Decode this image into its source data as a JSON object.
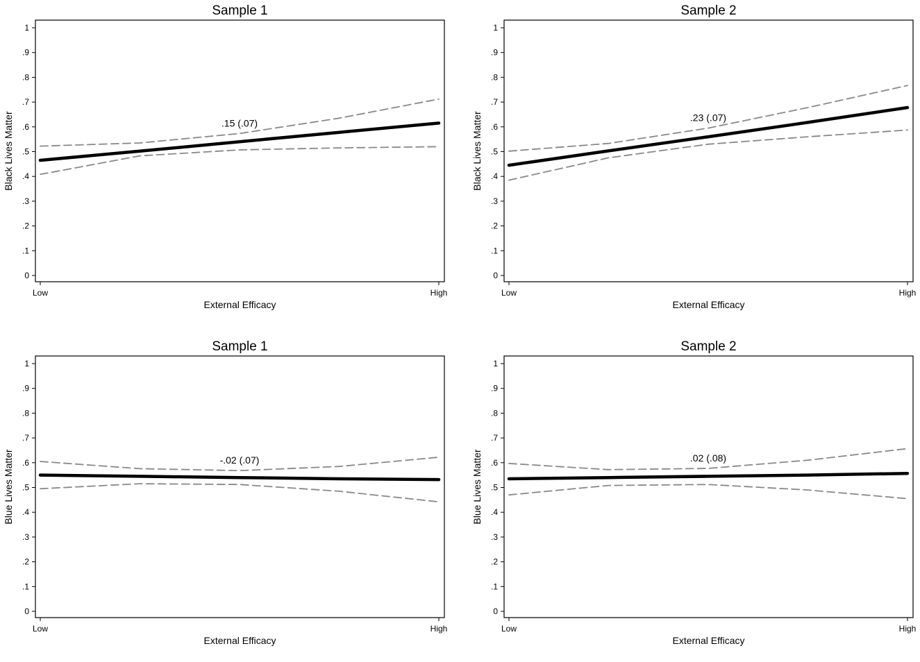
{
  "chart_data": [
    {
      "type": "line",
      "title": "Sample 1",
      "xlabel": "External Efficacy",
      "ylabel": "Black Lives Matter",
      "x": [
        0,
        0.25,
        0.5,
        0.75,
        1
      ],
      "xtick_labels": [
        "Low",
        "High"
      ],
      "ylim": [
        0,
        1
      ],
      "yticks": [
        "0",
        ".1",
        ".2",
        ".3",
        ".4",
        ".5",
        ".6",
        ".7",
        ".8",
        ".9",
        "1"
      ],
      "annotation": ".15 (.07)",
      "series": [
        {
          "name": "Predicted value",
          "style": "solid",
          "values": [
            0.465,
            0.502,
            0.54,
            0.578,
            0.615
          ]
        },
        {
          "name": "Upper 95% CI",
          "style": "dashed",
          "values": [
            0.522,
            0.535,
            0.573,
            0.635,
            0.712
          ]
        },
        {
          "name": "Lower 95% CI",
          "style": "dashed",
          "values": [
            0.408,
            0.483,
            0.507,
            0.515,
            0.52
          ]
        }
      ]
    },
    {
      "type": "line",
      "title": "Sample 2",
      "xlabel": "External Efficacy",
      "ylabel": "Black Lives Matter",
      "x": [
        0,
        0.25,
        0.5,
        0.75,
        1
      ],
      "xtick_labels": [
        "Low",
        "High"
      ],
      "ylim": [
        0,
        1
      ],
      "yticks": [
        "0",
        ".1",
        ".2",
        ".3",
        ".4",
        ".5",
        ".6",
        ".7",
        ".8",
        ".9",
        "1"
      ],
      "annotation": ".23 (.07)",
      "series": [
        {
          "name": "Predicted value",
          "style": "solid",
          "values": [
            0.445,
            0.503,
            0.56,
            0.618,
            0.678
          ]
        },
        {
          "name": "Upper 95% CI",
          "style": "dashed",
          "values": [
            0.502,
            0.533,
            0.595,
            0.678,
            0.767
          ]
        },
        {
          "name": "Lower 95% CI",
          "style": "dashed",
          "values": [
            0.385,
            0.475,
            0.53,
            0.56,
            0.587
          ]
        }
      ]
    },
    {
      "type": "line",
      "title": "Sample 1",
      "xlabel": "External Efficacy",
      "ylabel": "Blue Lives Matter",
      "x": [
        0,
        0.25,
        0.5,
        0.75,
        1
      ],
      "xtick_labels": [
        "Low",
        "High"
      ],
      "ylim": [
        0,
        1
      ],
      "yticks": [
        "0",
        ".1",
        ".2",
        ".3",
        ".4",
        ".5",
        ".6",
        ".7",
        ".8",
        ".9",
        "1"
      ],
      "annotation": "-.02 (.07)",
      "series": [
        {
          "name": "Predicted value",
          "style": "solid",
          "values": [
            0.55,
            0.545,
            0.54,
            0.535,
            0.532
          ]
        },
        {
          "name": "Upper 95% CI",
          "style": "dashed",
          "values": [
            0.605,
            0.576,
            0.568,
            0.585,
            0.622
          ]
        },
        {
          "name": "Lower 95% CI",
          "style": "dashed",
          "values": [
            0.495,
            0.515,
            0.512,
            0.485,
            0.442
          ]
        }
      ]
    },
    {
      "type": "line",
      "title": "Sample 2",
      "xlabel": "External Efficacy",
      "ylabel": "Blue Lives Matter",
      "x": [
        0,
        0.25,
        0.5,
        0.75,
        1
      ],
      "xtick_labels": [
        "Low",
        "High"
      ],
      "ylim": [
        0,
        1
      ],
      "yticks": [
        "0",
        ".1",
        ".2",
        ".3",
        ".4",
        ".5",
        ".6",
        ".7",
        ".8",
        ".9",
        "1"
      ],
      "annotation": ".02 (.08)",
      "series": [
        {
          "name": "Predicted value",
          "style": "solid",
          "values": [
            0.535,
            0.54,
            0.545,
            0.55,
            0.557
          ]
        },
        {
          "name": "Upper 95% CI",
          "style": "dashed",
          "values": [
            0.597,
            0.572,
            0.577,
            0.61,
            0.657
          ]
        },
        {
          "name": "Lower 95% CI",
          "style": "dashed",
          "values": [
            0.47,
            0.508,
            0.512,
            0.49,
            0.455
          ]
        }
      ]
    }
  ],
  "colors": {
    "estimate_line": "#000000",
    "ci_line": "#888888",
    "frame": "#000000"
  }
}
